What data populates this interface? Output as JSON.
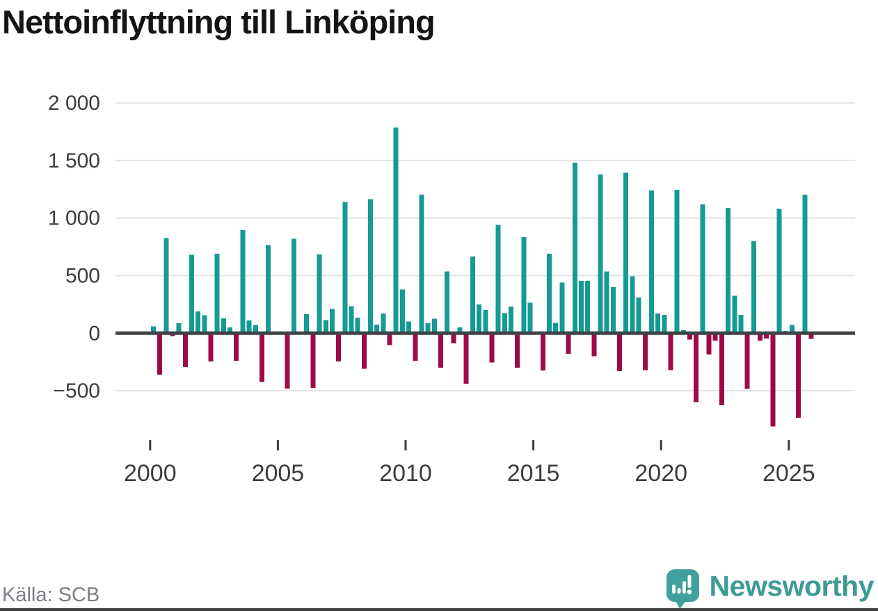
{
  "title": "Nettoinflyttning till Linköping",
  "source": "Källa: SCB",
  "brand": {
    "name": "Newsworthy",
    "wordmark_color": "#3d9b96",
    "icon_color": "#3fa09c"
  },
  "chart_data": {
    "type": "bar",
    "title": "Nettoinflyttning till Linköping",
    "frequency": "quarterly",
    "start_period": "2000 Q1",
    "end_period": "2025 Q4",
    "grid": true,
    "positive_color": "#169a94",
    "negative_color": "#9e0a48",
    "ylim": [
      -900,
      2050
    ],
    "y_tick_values": [
      2000,
      1500,
      1000,
      500,
      0,
      -500
    ],
    "y_tick_labels": [
      "2 000",
      "1 500",
      "1 000",
      "500",
      "0",
      "−500"
    ],
    "x_tick_years": [
      2000,
      2005,
      2010,
      2015,
      2020,
      2025
    ],
    "x_tick_labels": [
      "2000",
      "2005",
      "2010",
      "2015",
      "2020",
      "2025"
    ],
    "years": [
      {
        "year": 2000,
        "q": [
          60,
          -360,
          825,
          -25
        ]
      },
      {
        "year": 2001,
        "q": [
          85,
          -295,
          680,
          190
        ]
      },
      {
        "year": 2002,
        "q": [
          155,
          -245,
          690,
          130
        ]
      },
      {
        "year": 2003,
        "q": [
          50,
          -240,
          895,
          110
        ]
      },
      {
        "year": 2004,
        "q": [
          70,
          -425,
          765,
          0
        ]
      },
      {
        "year": 2005,
        "q": [
          0,
          -480,
          820,
          0
        ]
      },
      {
        "year": 2006,
        "q": [
          165,
          -475,
          685,
          115
        ]
      },
      {
        "year": 2007,
        "q": [
          210,
          -245,
          1140,
          235
        ]
      },
      {
        "year": 2008,
        "q": [
          135,
          -310,
          1165,
          75
        ]
      },
      {
        "year": 2009,
        "q": [
          170,
          -105,
          1785,
          380
        ]
      },
      {
        "year": 2010,
        "q": [
          100,
          -240,
          1205,
          85
        ]
      },
      {
        "year": 2011,
        "q": [
          125,
          -300,
          535,
          -90
        ]
      },
      {
        "year": 2012,
        "q": [
          50,
          -440,
          665,
          250
        ]
      },
      {
        "year": 2013,
        "q": [
          200,
          -255,
          940,
          175
        ]
      },
      {
        "year": 2014,
        "q": [
          230,
          -300,
          835,
          265
        ]
      },
      {
        "year": 2015,
        "q": [
          0,
          -325,
          690,
          90
        ]
      },
      {
        "year": 2016,
        "q": [
          440,
          -180,
          1480,
          455
        ]
      },
      {
        "year": 2017,
        "q": [
          455,
          -200,
          1380,
          535
        ]
      },
      {
        "year": 2018,
        "q": [
          400,
          -330,
          1395,
          495
        ]
      },
      {
        "year": 2019,
        "q": [
          310,
          -320,
          1240,
          170
        ]
      },
      {
        "year": 2020,
        "q": [
          160,
          -320,
          1245,
          25
        ]
      },
      {
        "year": 2021,
        "q": [
          -55,
          -600,
          1120,
          -185
        ]
      },
      {
        "year": 2022,
        "q": [
          -65,
          -625,
          1090,
          325
        ]
      },
      {
        "year": 2023,
        "q": [
          160,
          -485,
          800,
          -65
        ]
      },
      {
        "year": 2024,
        "q": [
          -45,
          -810,
          1080,
          20
        ]
      },
      {
        "year": 2025,
        "q": [
          70,
          -735,
          1205,
          -50
        ]
      }
    ]
  }
}
